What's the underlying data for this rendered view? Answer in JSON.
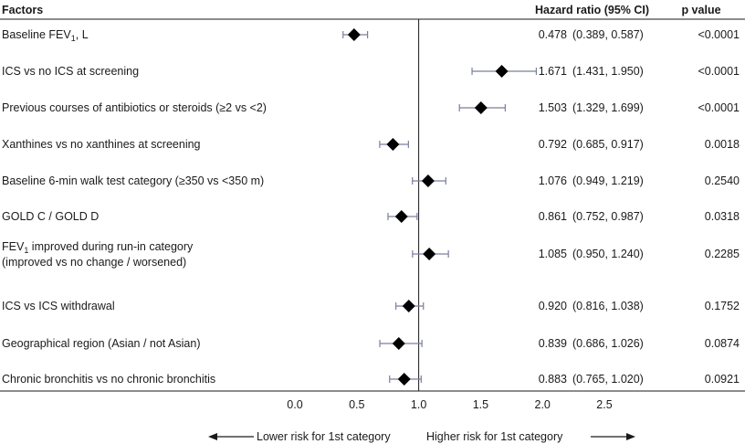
{
  "chart_data": {
    "type": "forest",
    "headers": {
      "factors": "Factors",
      "hazard_ratio": "Hazard ratio (95% CI)",
      "p_value": "p value"
    },
    "reference_line": 1.0,
    "xlim": [
      0.0,
      2.5
    ],
    "x_ticks": [
      "0.0",
      "0.5",
      "1.0",
      "1.5",
      "2.0",
      "2.5"
    ],
    "rows": [
      {
        "label": "Baseline FEV",
        "sub": "1",
        "label_tail": ", L",
        "hr": 0.478,
        "lo": 0.389,
        "hi": 0.587,
        "hr_text": "0.478",
        "ci_text": "(0.389, 0.587)",
        "p": "<0.0001"
      },
      {
        "label": "ICS vs no ICS at screening",
        "hr": 1.671,
        "lo": 1.431,
        "hi": 1.95,
        "hr_text": "1.671",
        "ci_text": "(1.431, 1.950)",
        "p": "<0.0001"
      },
      {
        "label": "Previous courses of antibiotics or steroids (≥2 vs <2)",
        "hr": 1.503,
        "lo": 1.329,
        "hi": 1.699,
        "hr_text": "1.503",
        "ci_text": "(1.329, 1.699)",
        "p": "<0.0001"
      },
      {
        "label": "Xanthines vs no xanthines at screening",
        "hr": 0.792,
        "lo": 0.685,
        "hi": 0.917,
        "hr_text": "0.792",
        "ci_text": "(0.685, 0.917)",
        "p": "0.0018"
      },
      {
        "label": "Baseline 6-min walk test category (≥350 vs <350 m)",
        "hr": 1.076,
        "lo": 0.949,
        "hi": 1.219,
        "hr_text": "1.076",
        "ci_text": "(0.949, 1.219)",
        "p": "0.2540"
      },
      {
        "label": "GOLD C /  GOLD D",
        "hr": 0.861,
        "lo": 0.752,
        "hi": 0.987,
        "hr_text": "0.861",
        "ci_text": "(0.752, 0.987)",
        "p": "0.0318"
      },
      {
        "label": "FEV",
        "sub": "1",
        "label_tail": " improved during run-in category",
        "label_line2": "(improved vs no change / worsened)",
        "hr": 1.085,
        "lo": 0.95,
        "hi": 1.24,
        "hr_text": "1.085",
        "ci_text": "(0.950, 1.240)",
        "p": "0.2285"
      },
      {
        "label": "ICS vs ICS withdrawal",
        "hr": 0.92,
        "lo": 0.816,
        "hi": 1.038,
        "hr_text": "0.920",
        "ci_text": "(0.816, 1.038)",
        "p": "0.1752"
      },
      {
        "label": "Geographical region (Asian / not Asian)",
        "hr": 0.839,
        "lo": 0.686,
        "hi": 1.026,
        "hr_text": "0.839",
        "ci_text": "(0.686, 1.026)",
        "p": "0.0874"
      },
      {
        "label": "Chronic bronchitis vs no chronic bronchitis",
        "hr": 0.883,
        "lo": 0.765,
        "hi": 1.02,
        "hr_text": "0.883",
        "ci_text": "(0.765, 1.020)",
        "p": "0.0921"
      }
    ],
    "direction_labels": {
      "lower": "Lower risk for 1st category",
      "higher": "Higher risk for 1st category"
    },
    "colors": {
      "marker": "#000000",
      "ci_line": "#7a7f9e",
      "axis": "#1a1a1a"
    }
  }
}
